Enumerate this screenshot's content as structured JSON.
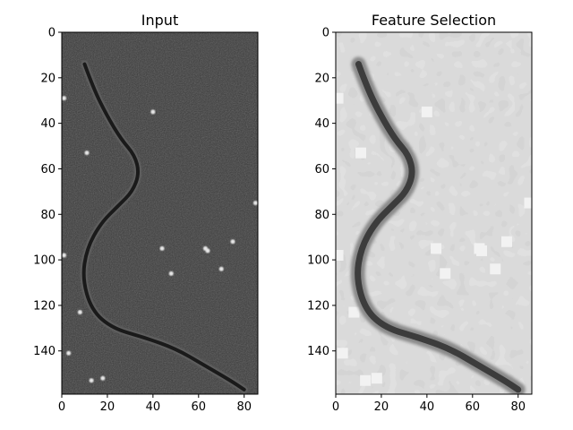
{
  "chart_data": [
    {
      "type": "image",
      "title": "Input",
      "xlabel": "",
      "ylabel": "",
      "colormap": "gray",
      "image_shape": [
        159,
        86
      ],
      "xlim": [
        0,
        86
      ],
      "ylim": [
        159,
        0
      ],
      "xticks": [
        0,
        20,
        40,
        60,
        80
      ],
      "yticks": [
        0,
        20,
        40,
        60,
        80,
        100,
        120,
        140
      ],
      "xtick_labels": [
        "0",
        "20",
        "40",
        "60",
        "80"
      ],
      "ytick_labels": [
        "0",
        "20",
        "40",
        "60",
        "80",
        "100",
        "120",
        "140"
      ],
      "annotations": [],
      "background": "#3a3a3a",
      "curve_color": "#1a1a1a"
    },
    {
      "type": "image",
      "title": "Feature Selection",
      "xlabel": "",
      "ylabel": "",
      "colormap": "gray",
      "image_shape": [
        159,
        86
      ],
      "xlim": [
        0,
        86
      ],
      "ylim": [
        159,
        0
      ],
      "xticks": [
        0,
        20,
        40,
        60,
        80
      ],
      "yticks": [
        0,
        20,
        40,
        60,
        80,
        100,
        120,
        140
      ],
      "xtick_labels": [
        "0",
        "20",
        "40",
        "60",
        "80"
      ],
      "ytick_labels": [
        "0",
        "20",
        "40",
        "60",
        "80",
        "100",
        "120",
        "140"
      ],
      "annotations": [],
      "background": "#c4c4c4",
      "curve_color": "#3c3c3c"
    }
  ],
  "curve_path": [
    [
      10,
      14
    ],
    [
      14,
      25
    ],
    [
      20,
      37
    ],
    [
      26,
      47
    ],
    [
      32,
      54
    ],
    [
      34,
      62
    ],
    [
      31,
      70
    ],
    [
      25,
      76
    ],
    [
      17,
      84
    ],
    [
      11,
      95
    ],
    [
      9,
      108
    ],
    [
      13,
      122
    ],
    [
      22,
      130
    ],
    [
      36,
      134
    ],
    [
      50,
      139
    ],
    [
      62,
      146
    ],
    [
      74,
      153
    ],
    [
      80,
      157
    ]
  ],
  "bright_spots": [
    [
      1,
      29
    ],
    [
      11,
      53
    ],
    [
      40,
      35
    ],
    [
      44,
      95
    ],
    [
      48,
      106
    ],
    [
      63,
      95
    ],
    [
      64,
      96
    ],
    [
      75,
      92
    ],
    [
      8,
      123
    ],
    [
      13,
      153
    ],
    [
      18,
      152
    ],
    [
      3,
      141
    ],
    [
      1,
      98
    ],
    [
      85,
      75
    ],
    [
      70,
      104
    ]
  ]
}
